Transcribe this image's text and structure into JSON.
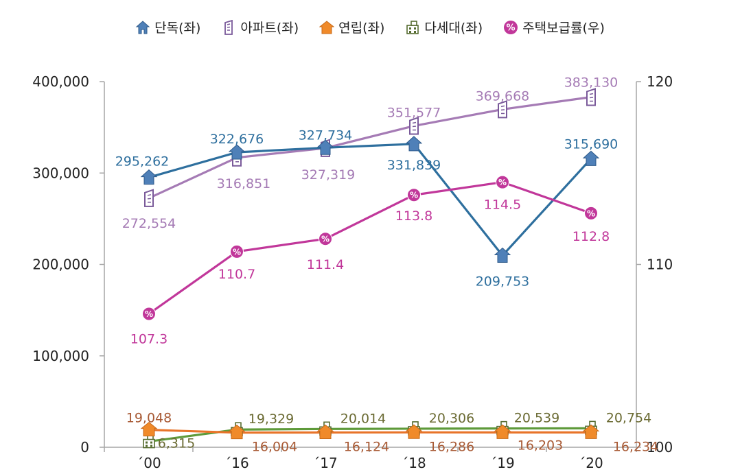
{
  "chart_data": {
    "type": "line",
    "categories": [
      "´00",
      "´16",
      "´17",
      "´18",
      "´19",
      "´20"
    ],
    "y_left": {
      "ticks": [
        "0",
        "100,000",
        "200,000",
        "300,000",
        "400,000"
      ],
      "range": [
        0,
        400000
      ]
    },
    "y_right": {
      "ticks": [
        "100",
        "110",
        "120"
      ],
      "range": [
        100,
        120
      ]
    },
    "grid": false,
    "legend_position": "top",
    "series": [
      {
        "key": "detached",
        "name": "단독(좌)",
        "axis": "left",
        "color": "#2e6f9e",
        "icon": "house-icon",
        "values": [
          295262,
          322676,
          327734,
          331839,
          209753,
          315690
        ],
        "labels": [
          "295,262",
          "322,676",
          "327,734",
          "331,839",
          "209,753",
          "315,690"
        ]
      },
      {
        "key": "apartment",
        "name": "아파트(좌)",
        "axis": "left",
        "color": "#a57bb5",
        "icon": "apartment-icon",
        "values": [
          272554,
          316851,
          327319,
          351577,
          369668,
          383130
        ],
        "labels": [
          "272,554",
          "316,851",
          "327,319",
          "351,577",
          "369,668",
          "383,130"
        ]
      },
      {
        "key": "rowhouse",
        "name": "연립(좌)",
        "axis": "left",
        "color": "#e8742a",
        "icon": "rowhouse-icon",
        "values": [
          19048,
          16004,
          16124,
          16286,
          16203,
          16234
        ],
        "labels": [
          "19,048",
          "16,004",
          "16,124",
          "16,286",
          "16,203",
          "16,234"
        ]
      },
      {
        "key": "multiplex",
        "name": "다세대(좌)",
        "axis": "left",
        "color": "#5e9a3a",
        "icon": "multiplex-icon",
        "values": [
          6315,
          19329,
          20014,
          20306,
          20539,
          20754
        ],
        "labels": [
          "6,315",
          "19,329",
          "20,014",
          "20,306",
          "20,539",
          "20,754"
        ]
      },
      {
        "key": "supply",
        "name": "주택보급률(우)",
        "axis": "right",
        "color": "#c1379a",
        "icon": "percent-icon",
        "values": [
          107.3,
          110.7,
          111.4,
          113.8,
          114.5,
          112.8
        ],
        "labels": [
          "107.3",
          "110.7",
          "111.4",
          "113.8",
          "114.5",
          "112.8"
        ]
      }
    ]
  }
}
